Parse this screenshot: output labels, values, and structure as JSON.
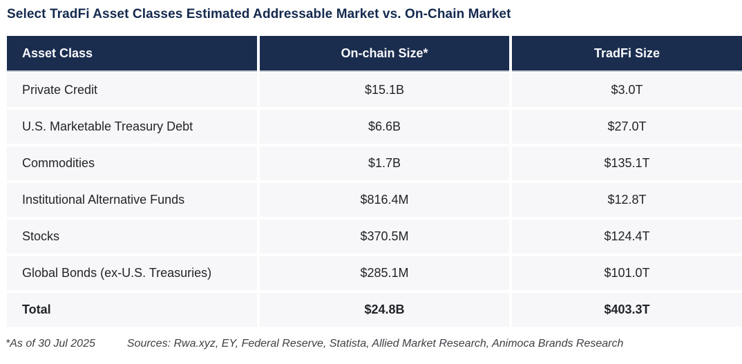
{
  "title": "Select TradFi Asset Classes Estimated Addressable Market vs. On-Chain Market",
  "table": {
    "columns": [
      "Asset Class",
      "On-chain Size*",
      "TradFi Size"
    ],
    "rows": [
      {
        "asset_class": "Private Credit",
        "on_chain": "$15.1B",
        "tradfi": "$3.0T"
      },
      {
        "asset_class": "U.S. Marketable Treasury Debt",
        "on_chain": "$6.6B",
        "tradfi": "$27.0T"
      },
      {
        "asset_class": "Commodities",
        "on_chain": "$1.7B",
        "tradfi": "$135.1T"
      },
      {
        "asset_class": "Institutional Alternative Funds",
        "on_chain": "$816.4M",
        "tradfi": "$12.8T"
      },
      {
        "asset_class": "Stocks",
        "on_chain": "$370.5M",
        "tradfi": "$124.4T"
      },
      {
        "asset_class": "Global Bonds (ex-U.S. Treasuries)",
        "on_chain": "$285.1M",
        "tradfi": "$101.0T"
      }
    ],
    "total": {
      "asset_class": "Total",
      "on_chain": "$24.8B",
      "tradfi": "$403.3T"
    }
  },
  "footnote": {
    "as_of": "*As of 30 Jul 2025",
    "sources": "Sources: Rwa.xyz, EY, Federal Reserve, Statista, Allied Market Research, Animoca Brands Research"
  },
  "colors": {
    "header_bg": "#1b2d4e",
    "header_text": "#f7f9fc",
    "row_bg": "#f7f7f9",
    "title_text": "#14294e",
    "cell_text": "#212428",
    "footnote_text": "#3c3f44",
    "page_bg": "#ffffff"
  },
  "chart_data": {
    "type": "table",
    "title": "Select TradFi Asset Classes Estimated Addressable Market vs. On-Chain Market",
    "columns": [
      "Asset Class",
      "On-chain Size*",
      "TradFi Size"
    ],
    "rows": [
      [
        "Private Credit",
        "$15.1B",
        "$3.0T"
      ],
      [
        "U.S. Marketable Treasury Debt",
        "$6.6B",
        "$27.0T"
      ],
      [
        "Commodities",
        "$1.7B",
        "$135.1T"
      ],
      [
        "Institutional Alternative Funds",
        "$816.4M",
        "$12.8T"
      ],
      [
        "Stocks",
        "$370.5M",
        "$124.4T"
      ],
      [
        "Global Bonds (ex-U.S. Treasuries)",
        "$285.1M",
        "$101.0T"
      ],
      [
        "Total",
        "$24.8B",
        "$403.3T"
      ]
    ],
    "on_chain_values_usd_billions": [
      15.1,
      6.6,
      1.7,
      0.8164,
      0.3705,
      0.2851,
      24.8
    ],
    "tradfi_values_usd_trillions": [
      3.0,
      27.0,
      135.1,
      12.8,
      124.4,
      101.0,
      403.3
    ],
    "footnote": "*As of 30 Jul 2025  Sources: Rwa.xyz, EY, Federal Reserve, Statista, Allied Market Research, Animoca Brands Research"
  }
}
